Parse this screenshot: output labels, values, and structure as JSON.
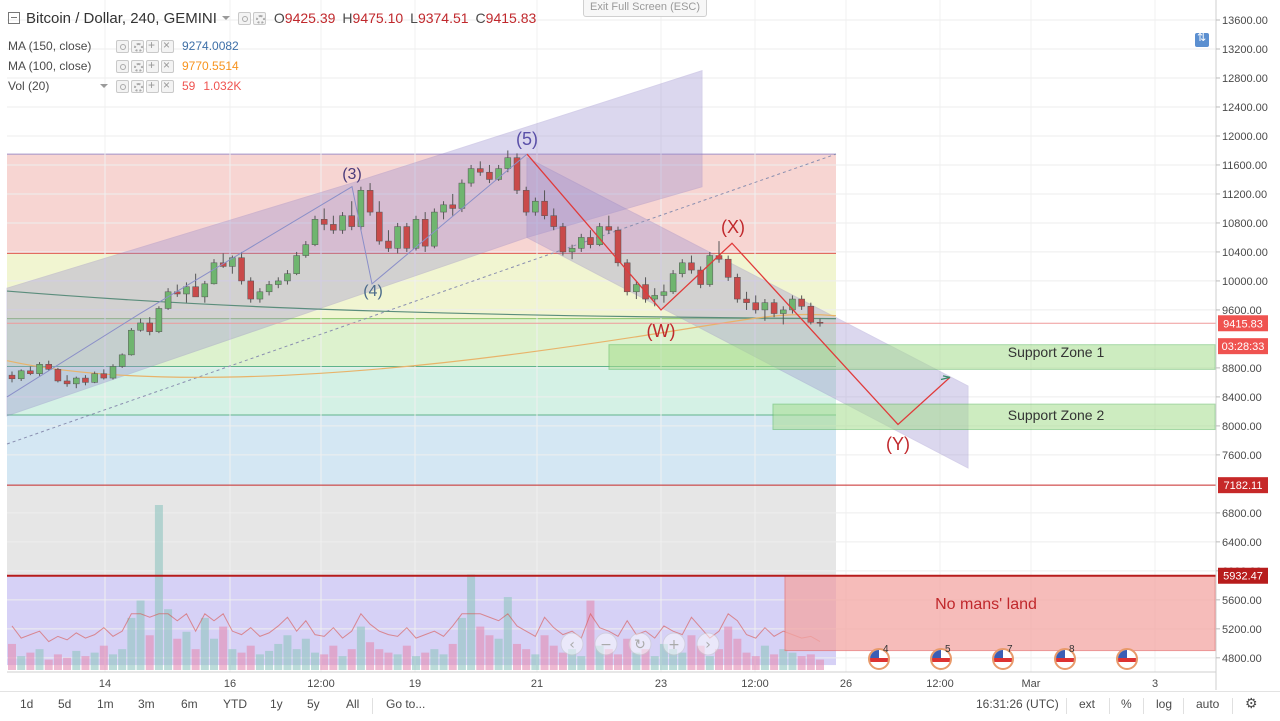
{
  "header": {
    "symbol": "Bitcoin / Dollar, 240, GEMINI",
    "ohlc": [
      {
        "k": "O",
        "v": "9425.39"
      },
      {
        "k": "H",
        "v": "9475.10"
      },
      {
        "k": "L",
        "v": "9374.51"
      },
      {
        "k": "C",
        "v": "9415.83"
      }
    ],
    "indicators": [
      {
        "label": "MA (150, close)",
        "value": "9274.0082",
        "color": "#3d6fa8",
        "extra": ""
      },
      {
        "label": "MA (100, close)",
        "value": "9770.5514",
        "color": "#f7931e",
        "extra": ""
      },
      {
        "label": "Vol (20)",
        "value": "1.032K",
        "color": "#ef5350",
        "extra": "59"
      }
    ]
  },
  "exit_fullscreen": "Exit Full Screen (ESC)",
  "price_axis": {
    "ticks": [
      "13600.00",
      "13200.00",
      "12800.00",
      "12400.00",
      "12000.00",
      "11600.00",
      "11200.00",
      "10800.00",
      "10400.00",
      "10000.00",
      "9600.00",
      "8800.00",
      "8400.00",
      "8000.00",
      "7600.00",
      "6800.00",
      "6400.00",
      "6000.00",
      "5600.00",
      "5200.00",
      "4800.00"
    ],
    "tags": [
      {
        "text": "9415.83",
        "price": 9415.83,
        "color": "#ef5350"
      },
      {
        "text": "03:28:33",
        "price": 9100,
        "color": "#ef5350"
      },
      {
        "text": "7182.11",
        "price": 7182.11,
        "color": "#c62828"
      },
      {
        "text": "5932.47",
        "price": 5932.47,
        "color": "#b71c1c"
      }
    ]
  },
  "time_axis": {
    "ticks": [
      "14",
      "16",
      "12:00",
      "19",
      "21",
      "23",
      "12:00",
      "26",
      "12:00",
      "Mar",
      "3"
    ]
  },
  "chart_data": {
    "type": "candlestick",
    "title": "Bitcoin / Dollar, 240, GEMINI",
    "ylim": [
      4700,
      13700
    ],
    "candles": [
      [
        8700,
        8750,
        8600,
        8650
      ],
      [
        8650,
        8780,
        8620,
        8760
      ],
      [
        8760,
        8820,
        8700,
        8720
      ],
      [
        8720,
        8880,
        8690,
        8850
      ],
      [
        8850,
        8900,
        8760,
        8780
      ],
      [
        8780,
        8800,
        8600,
        8620
      ],
      [
        8620,
        8700,
        8540,
        8580
      ],
      [
        8580,
        8680,
        8520,
        8660
      ],
      [
        8660,
        8700,
        8560,
        8600
      ],
      [
        8600,
        8750,
        8590,
        8720
      ],
      [
        8720,
        8780,
        8640,
        8660
      ],
      [
        8660,
        8850,
        8640,
        8820
      ],
      [
        8820,
        9000,
        8800,
        8980
      ],
      [
        8980,
        9350,
        8970,
        9320
      ],
      [
        9320,
        9480,
        9300,
        9420
      ],
      [
        9420,
        9500,
        9250,
        9300
      ],
      [
        9300,
        9650,
        9280,
        9620
      ],
      [
        9620,
        9900,
        9600,
        9850
      ],
      [
        9850,
        9950,
        9780,
        9820
      ],
      [
        9820,
        9980,
        9700,
        9920
      ],
      [
        9920,
        10100,
        9850,
        9780
      ],
      [
        9780,
        10000,
        9700,
        9960
      ],
      [
        9960,
        10300,
        9950,
        10250
      ],
      [
        10250,
        10380,
        10180,
        10200
      ],
      [
        10200,
        10350,
        10100,
        10320
      ],
      [
        10320,
        10400,
        9950,
        10000
      ],
      [
        10000,
        10050,
        9700,
        9750
      ],
      [
        9750,
        9900,
        9700,
        9850
      ],
      [
        9850,
        10000,
        9800,
        9950
      ],
      [
        9950,
        10050,
        9900,
        10000
      ],
      [
        10000,
        10150,
        9950,
        10100
      ],
      [
        10100,
        10400,
        10080,
        10350
      ],
      [
        10350,
        10550,
        10320,
        10500
      ],
      [
        10500,
        10900,
        10480,
        10850
      ],
      [
        10850,
        11000,
        10700,
        10780
      ],
      [
        10780,
        10900,
        10650,
        10700
      ],
      [
        10700,
        10950,
        10650,
        10900
      ],
      [
        10900,
        11100,
        10700,
        10750
      ],
      [
        10750,
        11300,
        10700,
        11250
      ],
      [
        11250,
        11350,
        10900,
        10950
      ],
      [
        10950,
        11100,
        10500,
        10550
      ],
      [
        10550,
        10700,
        10400,
        10450
      ],
      [
        10450,
        10800,
        10380,
        10750
      ],
      [
        10750,
        10800,
        10400,
        10450
      ],
      [
        10450,
        10900,
        10420,
        10850
      ],
      [
        10850,
        10950,
        10400,
        10480
      ],
      [
        10480,
        11000,
        10450,
        10950
      ],
      [
        10950,
        11100,
        10850,
        11050
      ],
      [
        11050,
        11200,
        10900,
        11000
      ],
      [
        11000,
        11400,
        10950,
        11350
      ],
      [
        11350,
        11600,
        11300,
        11550
      ],
      [
        11550,
        11650,
        11450,
        11500
      ],
      [
        11500,
        11600,
        11350,
        11400
      ],
      [
        11400,
        11600,
        11380,
        11550
      ],
      [
        11550,
        11800,
        11500,
        11700
      ],
      [
        11700,
        11760,
        11200,
        11250
      ],
      [
        11250,
        11300,
        10900,
        10950
      ],
      [
        10950,
        11150,
        10900,
        11100
      ],
      [
        11100,
        11250,
        10850,
        10900
      ],
      [
        10900,
        11000,
        10700,
        10750
      ],
      [
        10750,
        10800,
        10350,
        10400
      ],
      [
        10400,
        10500,
        10300,
        10450
      ],
      [
        10450,
        10650,
        10400,
        10600
      ],
      [
        10600,
        10700,
        10450,
        10500
      ],
      [
        10500,
        10800,
        10480,
        10750
      ],
      [
        10750,
        10900,
        10650,
        10700
      ],
      [
        10700,
        10750,
        10200,
        10250
      ],
      [
        10250,
        10300,
        9800,
        9850
      ],
      [
        9850,
        10000,
        9750,
        9950
      ],
      [
        9950,
        10050,
        9700,
        9750
      ],
      [
        9750,
        9900,
        9650,
        9800
      ],
      [
        9800,
        9950,
        9700,
        9850
      ],
      [
        9850,
        10150,
        9820,
        10100
      ],
      [
        10100,
        10300,
        10050,
        10250
      ],
      [
        10250,
        10350,
        10100,
        10150
      ],
      [
        10150,
        10200,
        9900,
        9950
      ],
      [
        9950,
        10400,
        9920,
        10350
      ],
      [
        10350,
        10550,
        10250,
        10300
      ],
      [
        10300,
        10350,
        10000,
        10050
      ],
      [
        10050,
        10100,
        9700,
        9750
      ],
      [
        9750,
        9850,
        9600,
        9700
      ],
      [
        9700,
        9800,
        9550,
        9600
      ],
      [
        9600,
        9750,
        9450,
        9700
      ],
      [
        9700,
        9750,
        9500,
        9550
      ],
      [
        9550,
        9650,
        9400,
        9600
      ],
      [
        9600,
        9800,
        9550,
        9750
      ],
      [
        9750,
        9800,
        9600,
        9650
      ],
      [
        9650,
        9700,
        9400,
        9430
      ],
      [
        9430,
        9480,
        9370,
        9416
      ]
    ],
    "volumes": [
      15,
      8,
      10,
      12,
      6,
      9,
      7,
      11,
      8,
      10,
      14,
      9,
      12,
      30,
      40,
      20,
      95,
      35,
      18,
      22,
      12,
      30,
      18,
      25,
      12,
      10,
      14,
      9,
      11,
      15,
      20,
      12,
      18,
      10,
      9,
      14,
      8,
      12,
      25,
      16,
      12,
      10,
      9,
      14,
      8,
      10,
      12,
      9,
      15,
      30,
      55,
      25,
      20,
      18,
      42,
      15,
      12,
      9,
      20,
      14,
      10,
      12,
      8,
      40,
      14,
      12,
      9,
      18,
      10,
      12,
      8,
      15,
      12,
      10,
      20,
      14,
      8,
      12,
      25,
      18,
      10,
      8,
      14,
      9,
      12,
      10,
      8,
      9,
      6
    ],
    "volume_peak_label": "1.032K"
  },
  "annotations": {
    "waves": [
      {
        "text": "(3)",
        "color": "#4a3a7a"
      },
      {
        "text": "(4)",
        "color": "#4a6a8a"
      },
      {
        "text": "(5)",
        "color": "#5a50a8"
      },
      {
        "text": "(X)",
        "color": "#c0282c"
      },
      {
        "text": "(W)",
        "color": "#c0282c"
      },
      {
        "text": "(Y)",
        "color": "#c0282c"
      }
    ],
    "zones": [
      {
        "text": "Support Zone 1",
        "low": 8780,
        "high": 9120
      },
      {
        "text": "Support Zone 2",
        "low": 7950,
        "high": 8300
      },
      {
        "text": "No mans' land",
        "low": 4900,
        "high": 5932.47
      }
    ]
  },
  "toolbar": {
    "ranges": [
      "1d",
      "5d",
      "1m",
      "3m",
      "6m",
      "YTD",
      "1y",
      "5y",
      "All"
    ],
    "goto": "Go to...",
    "clock": "16:31:26 (UTC)",
    "ext": "ext",
    "percent": "%",
    "log": "log",
    "auto": "auto"
  },
  "events": [
    "4",
    "5",
    "7",
    "8",
    ""
  ]
}
